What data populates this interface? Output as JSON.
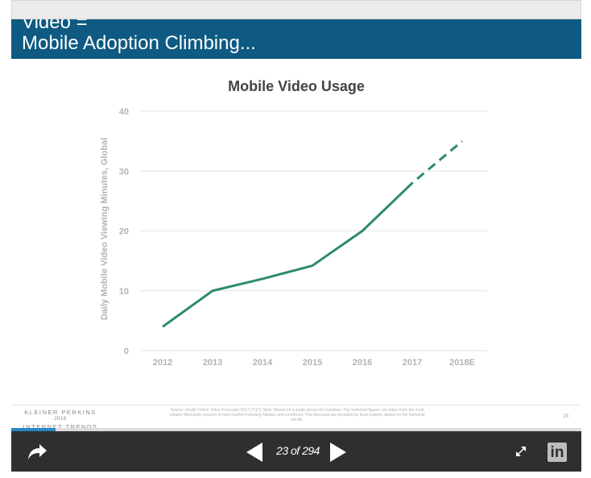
{
  "slide": {
    "title": "Video =\nMobile Adoption Climbing...",
    "header_color": "#0e5a82",
    "brand": {
      "line1": "KLEINER PERKINS",
      "line2": "2018",
      "line3": "INTERNET TRENDS"
    },
    "source": "Source: Zenith Online Video Forecasts 2017 (7/17). Note: Based on a study across 63 countries. The historical figures are taken from the most reliable third-party sources in each market including Nielsen and comScore. The forecasts are provided by local experts, based on the historical trends.",
    "page_number": "23"
  },
  "chart_data": {
    "type": "line",
    "title": "Mobile Video Usage",
    "xlabel": "",
    "ylabel": "Daily Mobile Video Viewing Minutes, Global",
    "categories": [
      "2012",
      "2013",
      "2014",
      "2015",
      "2016",
      "2017",
      "2018E"
    ],
    "yticks": [
      0,
      10,
      20,
      30,
      40
    ],
    "ylim": [
      0,
      40
    ],
    "grid": true,
    "series": [
      {
        "values": [
          4,
          10,
          12,
          14.2,
          20,
          28,
          35
        ],
        "color": "#2e8a72",
        "projected_from_index": 5
      }
    ]
  },
  "player": {
    "page_counter": "23 of 294",
    "current_page": 23,
    "total_pages": 294,
    "progress_fraction": 0.078,
    "share_icon": "share-icon",
    "prev_icon": "prev-arrow-icon",
    "next_icon": "next-arrow-icon",
    "fullscreen_icon": "fullscreen-icon",
    "linkedin_label": "in"
  }
}
